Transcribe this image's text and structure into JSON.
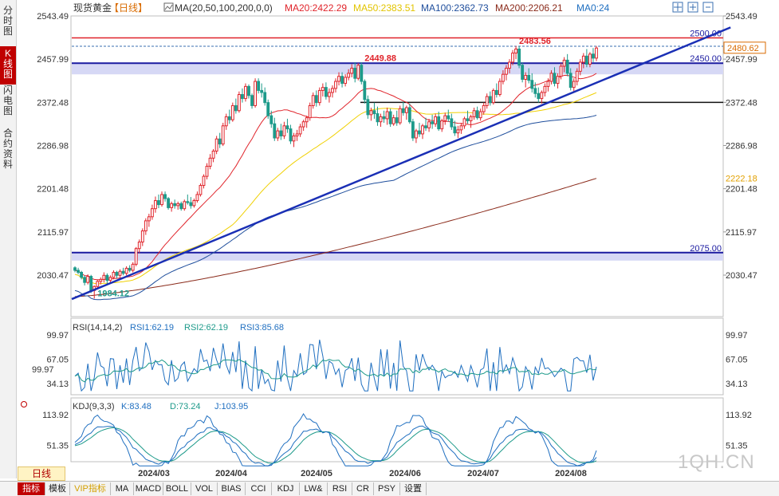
{
  "left_tabs": [
    {
      "label": "分时图",
      "active": false
    },
    {
      "label": "K线图",
      "active": true
    },
    {
      "label": "闪电图",
      "active": false
    },
    {
      "label": "合约资料",
      "active": false
    }
  ],
  "header": {
    "instrument": "现货黄金",
    "period": "【日线】",
    "ma_params": "MA(20,50,100,200,0,0)",
    "ma20": "MA20:2422.29",
    "ma50": "MA50:2383.51",
    "ma100": "MA100:2362.73",
    "ma200": "MA200:2206.21",
    "ma0": "MA0:24"
  },
  "rsi_header": {
    "params": "RSI(14,14,2)",
    "rsi1": "RSI1:62.19",
    "rsi2": "RSI2:62.19",
    "rsi3": "RSI3:85.68"
  },
  "kdj_header": {
    "params": "KDJ(9,3,3)",
    "k": "K:83.48",
    "d": "D:73.24",
    "j": "J:103.95"
  },
  "bottom_tabs": [
    "指标",
    "模板",
    "VIP指标",
    "MA",
    "MACD",
    "BOLL",
    "VOL",
    "BIAS",
    "CCI",
    "KDJ",
    "LW&",
    "RSI",
    "CR",
    "PSY",
    "设置"
  ],
  "period_label": "日线",
  "watermark": "1QH.CN",
  "colors": {
    "up": "#e0242b",
    "down": "#1d9a8a",
    "ma20": "#e0242b",
    "ma50": "#f0d000",
    "ma100": "#1f4e9c",
    "ma200": "#8a2a1a",
    "trendline": "#1a2fb5",
    "resistance": "#e0242b"
  },
  "chart_data": {
    "type": "candlestick",
    "x_ticks": [
      "2024/03",
      "2024/04",
      "2024/05",
      "2024/06",
      "2024/07",
      "2024/08"
    ],
    "y_ticks_left": [
      "2543.49",
      "2457.99",
      "2372.48",
      "2286.98",
      "2201.48",
      "2115.97",
      "2030.47"
    ],
    "y_ticks_right": [
      "2543.49",
      "2457.99",
      "2372.48",
      "2286.98",
      "2201.48",
      "2115.97",
      "2030.47"
    ],
    "ylim": [
      1975,
      2560
    ],
    "current_price": "2480.62",
    "ma200_price_label": "2222.18",
    "levels": [
      {
        "value": 2500,
        "label": "2500.00",
        "style": "red"
      },
      {
        "value": 2450,
        "label": "2450.00",
        "style": "blue-band"
      },
      {
        "value": 2372.48,
        "label": "",
        "style": "black"
      },
      {
        "value": 2075,
        "label": "2075.00",
        "style": "blue-band"
      }
    ],
    "annotations": [
      {
        "label": "2483.56",
        "x_index": 137,
        "value": 2483.56
      },
      {
        "label": "2449.88",
        "x_index": 89,
        "value": 2449.88
      },
      {
        "label": "1984.12",
        "x_index": 6,
        "value": 1984.12
      }
    ],
    "trendline": [
      {
        "x_index": 0,
        "value": 1983
      },
      {
        "x_index": 169,
        "value": 2505
      }
    ],
    "ohlc": [
      [
        2045,
        2048,
        2036,
        2040
      ],
      [
        2040,
        2045,
        2032,
        2036
      ],
      [
        2036,
        2039,
        2022,
        2026
      ],
      [
        2026,
        2030,
        2010,
        2016
      ],
      [
        2016,
        2032,
        2012,
        2028
      ],
      [
        2028,
        2031,
        1995,
        2000
      ],
      [
        2000,
        2010,
        1984,
        2008
      ],
      [
        2008,
        2021,
        2002,
        2018
      ],
      [
        2018,
        2026,
        2012,
        2022
      ],
      [
        2022,
        2036,
        2016,
        2030
      ],
      [
        2030,
        2034,
        2014,
        2020
      ],
      [
        2020,
        2030,
        2016,
        2026
      ],
      [
        2026,
        2040,
        2022,
        2036
      ],
      [
        2036,
        2039,
        2024,
        2030
      ],
      [
        2030,
        2042,
        2026,
        2038
      ],
      [
        2038,
        2045,
        2030,
        2034
      ],
      [
        2034,
        2048,
        2030,
        2044
      ],
      [
        2044,
        2050,
        2036,
        2040
      ],
      [
        2040,
        2056,
        2036,
        2052
      ],
      [
        2052,
        2086,
        2048,
        2083
      ],
      [
        2083,
        2101,
        2074,
        2096
      ],
      [
        2096,
        2123,
        2088,
        2118
      ],
      [
        2118,
        2143,
        2110,
        2138
      ],
      [
        2138,
        2152,
        2126,
        2146
      ],
      [
        2146,
        2170,
        2140,
        2162
      ],
      [
        2162,
        2186,
        2154,
        2178
      ],
      [
        2178,
        2190,
        2163,
        2170
      ],
      [
        2170,
        2196,
        2166,
        2190
      ],
      [
        2190,
        2196,
        2176,
        2182
      ],
      [
        2182,
        2185,
        2160,
        2164
      ],
      [
        2164,
        2176,
        2156,
        2172
      ],
      [
        2172,
        2180,
        2162,
        2168
      ],
      [
        2168,
        2176,
        2160,
        2172
      ],
      [
        2172,
        2176,
        2158,
        2162
      ],
      [
        2162,
        2180,
        2158,
        2176
      ],
      [
        2176,
        2190,
        2170,
        2174
      ],
      [
        2174,
        2185,
        2162,
        2168
      ],
      [
        2168,
        2182,
        2164,
        2178
      ],
      [
        2178,
        2196,
        2174,
        2190
      ],
      [
        2190,
        2212,
        2186,
        2208
      ],
      [
        2208,
        2230,
        2202,
        2226
      ],
      [
        2226,
        2252,
        2220,
        2246
      ],
      [
        2246,
        2270,
        2240,
        2262
      ],
      [
        2262,
        2280,
        2254,
        2276
      ],
      [
        2276,
        2306,
        2270,
        2300
      ],
      [
        2300,
        2312,
        2282,
        2290
      ],
      [
        2290,
        2332,
        2286,
        2326
      ],
      [
        2326,
        2350,
        2318,
        2344
      ],
      [
        2344,
        2358,
        2330,
        2338
      ],
      [
        2338,
        2372,
        2334,
        2366
      ],
      [
        2366,
        2380,
        2350,
        2356
      ],
      [
        2356,
        2394,
        2352,
        2388
      ],
      [
        2388,
        2400,
        2372,
        2380
      ],
      [
        2380,
        2410,
        2374,
        2404
      ],
      [
        2404,
        2408,
        2380,
        2386
      ],
      [
        2386,
        2390,
        2360,
        2366
      ],
      [
        2366,
        2420,
        2362,
        2414
      ],
      [
        2414,
        2420,
        2390,
        2396
      ],
      [
        2396,
        2410,
        2382,
        2392
      ],
      [
        2392,
        2402,
        2366,
        2372
      ],
      [
        2372,
        2378,
        2340,
        2346
      ],
      [
        2346,
        2356,
        2322,
        2330
      ],
      [
        2330,
        2342,
        2296,
        2302
      ],
      [
        2302,
        2322,
        2296,
        2316
      ],
      [
        2316,
        2330,
        2298,
        2306
      ],
      [
        2306,
        2334,
        2300,
        2326
      ],
      [
        2326,
        2340,
        2312,
        2320
      ],
      [
        2320,
        2328,
        2290,
        2296
      ],
      [
        2296,
        2312,
        2284,
        2306
      ],
      [
        2306,
        2318,
        2296,
        2310
      ],
      [
        2310,
        2330,
        2304,
        2324
      ],
      [
        2324,
        2338,
        2316,
        2334
      ],
      [
        2334,
        2346,
        2322,
        2342
      ],
      [
        2342,
        2372,
        2336,
        2366
      ],
      [
        2366,
        2392,
        2360,
        2386
      ],
      [
        2386,
        2396,
        2364,
        2372
      ],
      [
        2372,
        2402,
        2366,
        2396
      ],
      [
        2396,
        2410,
        2384,
        2402
      ],
      [
        2402,
        2412,
        2378,
        2384
      ],
      [
        2384,
        2400,
        2372,
        2392
      ],
      [
        2392,
        2406,
        2382,
        2400
      ],
      [
        2400,
        2420,
        2392,
        2414
      ],
      [
        2414,
        2432,
        2406,
        2424
      ],
      [
        2424,
        2432,
        2402,
        2410
      ],
      [
        2410,
        2428,
        2404,
        2422
      ],
      [
        2422,
        2438,
        2416,
        2430
      ],
      [
        2430,
        2448,
        2422,
        2440
      ],
      [
        2440,
        2452,
        2412,
        2420
      ],
      [
        2420,
        2450,
        2416,
        2446
      ],
      [
        2446,
        2452,
        2408,
        2414
      ],
      [
        2414,
        2418,
        2370,
        2378
      ],
      [
        2378,
        2386,
        2340,
        2348
      ],
      [
        2348,
        2362,
        2336,
        2356
      ],
      [
        2356,
        2372,
        2340,
        2350
      ],
      [
        2350,
        2364,
        2326,
        2334
      ],
      [
        2334,
        2350,
        2324,
        2344
      ],
      [
        2344,
        2356,
        2332,
        2340
      ],
      [
        2340,
        2362,
        2328,
        2354
      ],
      [
        2354,
        2360,
        2324,
        2330
      ],
      [
        2330,
        2348,
        2326,
        2342
      ],
      [
        2342,
        2356,
        2326,
        2332
      ],
      [
        2332,
        2366,
        2328,
        2360
      ],
      [
        2360,
        2374,
        2346,
        2352
      ],
      [
        2352,
        2366,
        2338,
        2362
      ],
      [
        2362,
        2370,
        2330,
        2334
      ],
      [
        2334,
        2340,
        2296,
        2302
      ],
      [
        2302,
        2320,
        2292,
        2316
      ],
      [
        2316,
        2332,
        2304,
        2310
      ],
      [
        2310,
        2330,
        2300,
        2326
      ],
      [
        2326,
        2342,
        2316,
        2322
      ],
      [
        2322,
        2340,
        2314,
        2334
      ],
      [
        2334,
        2348,
        2320,
        2330
      ],
      [
        2330,
        2350,
        2324,
        2344
      ],
      [
        2344,
        2354,
        2316,
        2320
      ],
      [
        2320,
        2340,
        2314,
        2336
      ],
      [
        2336,
        2352,
        2328,
        2346
      ],
      [
        2346,
        2358,
        2334,
        2340
      ],
      [
        2340,
        2350,
        2318,
        2324
      ],
      [
        2324,
        2336,
        2306,
        2312
      ],
      [
        2312,
        2326,
        2302,
        2318
      ],
      [
        2318,
        2332,
        2310,
        2326
      ],
      [
        2326,
        2344,
        2320,
        2340
      ],
      [
        2340,
        2356,
        2330,
        2336
      ],
      [
        2336,
        2348,
        2322,
        2344
      ],
      [
        2344,
        2362,
        2338,
        2356
      ],
      [
        2356,
        2364,
        2338,
        2342
      ],
      [
        2342,
        2360,
        2336,
        2354
      ],
      [
        2354,
        2372,
        2348,
        2366
      ],
      [
        2366,
        2390,
        2360,
        2384
      ],
      [
        2384,
        2394,
        2366,
        2372
      ],
      [
        2372,
        2400,
        2368,
        2396
      ],
      [
        2396,
        2410,
        2382,
        2388
      ],
      [
        2388,
        2420,
        2384,
        2414
      ],
      [
        2414,
        2436,
        2408,
        2428
      ],
      [
        2428,
        2446,
        2416,
        2440
      ],
      [
        2440,
        2458,
        2430,
        2452
      ],
      [
        2452,
        2476,
        2446,
        2470
      ],
      [
        2470,
        2484,
        2458,
        2478
      ],
      [
        2478,
        2484,
        2440,
        2446
      ],
      [
        2446,
        2452,
        2412,
        2418
      ],
      [
        2418,
        2432,
        2402,
        2426
      ],
      [
        2426,
        2440,
        2410,
        2416
      ],
      [
        2416,
        2430,
        2392,
        2400
      ],
      [
        2400,
        2412,
        2382,
        2390
      ],
      [
        2390,
        2402,
        2372,
        2380
      ],
      [
        2380,
        2396,
        2370,
        2392
      ],
      [
        2392,
        2410,
        2384,
        2404
      ],
      [
        2404,
        2420,
        2394,
        2414
      ],
      [
        2414,
        2436,
        2408,
        2430
      ],
      [
        2430,
        2442,
        2404,
        2410
      ],
      [
        2410,
        2430,
        2400,
        2424
      ],
      [
        2424,
        2450,
        2418,
        2444
      ],
      [
        2444,
        2462,
        2432,
        2456
      ],
      [
        2456,
        2468,
        2424,
        2430
      ],
      [
        2430,
        2440,
        2396,
        2402
      ],
      [
        2402,
        2420,
        2392,
        2414
      ],
      [
        2414,
        2440,
        2406,
        2434
      ],
      [
        2434,
        2458,
        2426,
        2452
      ],
      [
        2452,
        2470,
        2440,
        2464
      ],
      [
        2464,
        2478,
        2442,
        2448
      ],
      [
        2448,
        2472,
        2442,
        2468
      ],
      [
        2468,
        2480,
        2452,
        2460
      ],
      [
        2460,
        2484,
        2454,
        2480
      ]
    ]
  }
}
